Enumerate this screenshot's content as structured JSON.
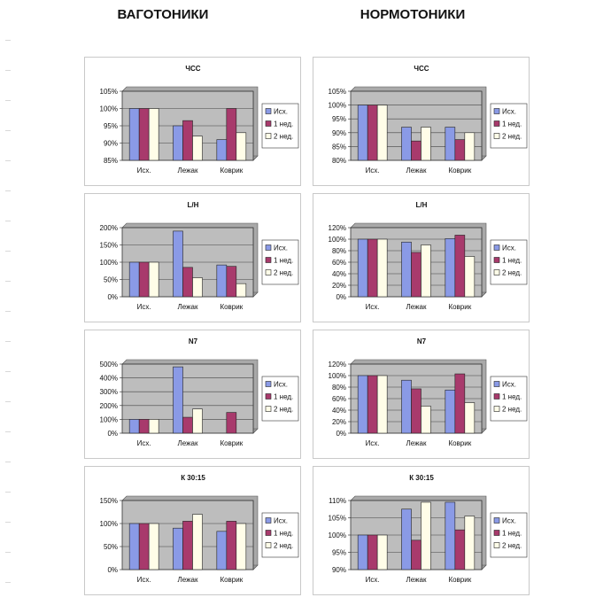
{
  "headers": {
    "left": "ВАГОТОНИКИ",
    "right": "НОРМОТОНИКИ"
  },
  "colors": {
    "series": [
      "#8a9ae6",
      "#a83a6c",
      "#fffde8"
    ],
    "plot_bg": "#bdbdbd",
    "grid": "#444444"
  },
  "chart_data": [
    {
      "type": "bar",
      "group": "ВАГОТОНИКИ",
      "title": "ЧСС",
      "categories": [
        "Исх.",
        "Лежак",
        "Коврик"
      ],
      "ylim": [
        85,
        105
      ],
      "yticks": [
        85,
        90,
        95,
        100,
        105
      ],
      "unit": "%",
      "legend": "right",
      "series": [
        {
          "name": "Исх.",
          "values": [
            100,
            95,
            91
          ]
        },
        {
          "name": "1 нед.",
          "values": [
            100,
            96.5,
            100
          ]
        },
        {
          "name": "2 нед.",
          "values": [
            100,
            92,
            93
          ]
        }
      ]
    },
    {
      "type": "bar",
      "group": "НОРМОТОНИКИ",
      "title": "ЧСС",
      "categories": [
        "Исх.",
        "Лежак",
        "Коврик"
      ],
      "ylim": [
        80,
        105
      ],
      "yticks": [
        80,
        85,
        90,
        95,
        100,
        105
      ],
      "unit": "%",
      "legend": "right",
      "series": [
        {
          "name": "Исх.",
          "values": [
            100,
            92,
            92
          ]
        },
        {
          "name": "1 нед.",
          "values": [
            100,
            87,
            87.5
          ]
        },
        {
          "name": "2 нед.",
          "values": [
            100,
            92,
            90
          ]
        }
      ]
    },
    {
      "type": "bar",
      "group": "ВАГОТОНИКИ",
      "title": "L/H",
      "categories": [
        "Исх.",
        "Лежак",
        "Коврик"
      ],
      "ylim": [
        0,
        200
      ],
      "yticks": [
        0,
        50,
        100,
        150,
        200
      ],
      "unit": "%",
      "legend": "right",
      "series": [
        {
          "name": "Исх.",
          "values": [
            100,
            190,
            92
          ]
        },
        {
          "name": "1 нед.",
          "values": [
            100,
            85,
            88
          ]
        },
        {
          "name": "2 нед.",
          "values": [
            100,
            55,
            38
          ]
        }
      ]
    },
    {
      "type": "bar",
      "group": "НОРМОТОНИКИ",
      "title": "L/H",
      "categories": [
        "Исх.",
        "Лежак",
        "Коврик"
      ],
      "ylim": [
        0,
        120
      ],
      "yticks": [
        0,
        20,
        40,
        60,
        80,
        100,
        120
      ],
      "unit": "%",
      "legend": "right",
      "series": [
        {
          "name": "Исх.",
          "values": [
            100,
            95,
            101
          ]
        },
        {
          "name": "1 нед.",
          "values": [
            100,
            77,
            107
          ]
        },
        {
          "name": "2 нед.",
          "values": [
            100,
            90,
            70
          ]
        }
      ]
    },
    {
      "type": "bar",
      "group": "ВАГОТОНИКИ",
      "title": "N7",
      "categories": [
        "Исх.",
        "Лежак",
        "Коврик"
      ],
      "ylim": [
        0,
        500
      ],
      "yticks": [
        0,
        100,
        200,
        300,
        400,
        500
      ],
      "unit": "%",
      "legend": "right",
      "series": [
        {
          "name": "Исх.",
          "values": [
            100,
            480,
            0
          ]
        },
        {
          "name": "1 нед.",
          "values": [
            100,
            115,
            150
          ]
        },
        {
          "name": "2 нед.",
          "values": [
            100,
            175,
            0
          ]
        }
      ]
    },
    {
      "type": "bar",
      "group": "НОРМОТОНИКИ",
      "title": "N7",
      "categories": [
        "Исх.",
        "Лежак",
        "Коврик"
      ],
      "ylim": [
        0,
        120
      ],
      "yticks": [
        0,
        20,
        40,
        60,
        80,
        100,
        120
      ],
      "unit": "%",
      "legend": "right",
      "series": [
        {
          "name": "Исх.",
          "values": [
            100,
            92,
            75
          ]
        },
        {
          "name": "1 нед.",
          "values": [
            100,
            77,
            103
          ]
        },
        {
          "name": "2 нед.",
          "values": [
            100,
            47,
            53
          ]
        }
      ]
    },
    {
      "type": "bar",
      "group": "ВАГОТОНИКИ",
      "title": "К 30:15",
      "categories": [
        "Исх.",
        "Лежак",
        "Коврик"
      ],
      "ylim": [
        0,
        150
      ],
      "yticks": [
        0,
        50,
        100,
        150
      ],
      "unit": "%",
      "legend": "right",
      "series": [
        {
          "name": "Исх.",
          "values": [
            100,
            90,
            83
          ]
        },
        {
          "name": "1 нед.",
          "values": [
            100,
            105,
            105
          ]
        },
        {
          "name": "2 нед.",
          "values": [
            100,
            120,
            100
          ]
        }
      ]
    },
    {
      "type": "bar",
      "group": "НОРМОТОНИКИ",
      "title": "К 30:15",
      "categories": [
        "Исх.",
        "Лежак",
        "Коврик"
      ],
      "ylim": [
        90,
        110
      ],
      "yticks": [
        90,
        95,
        100,
        105,
        110
      ],
      "unit": "%",
      "legend": "right",
      "series": [
        {
          "name": "Исх.",
          "values": [
            100,
            107.5,
            109.5
          ]
        },
        {
          "name": "1 нед.",
          "values": [
            100,
            98.5,
            101.5
          ]
        },
        {
          "name": "2 нед.",
          "values": [
            100,
            109.5,
            105.5
          ]
        }
      ]
    }
  ]
}
